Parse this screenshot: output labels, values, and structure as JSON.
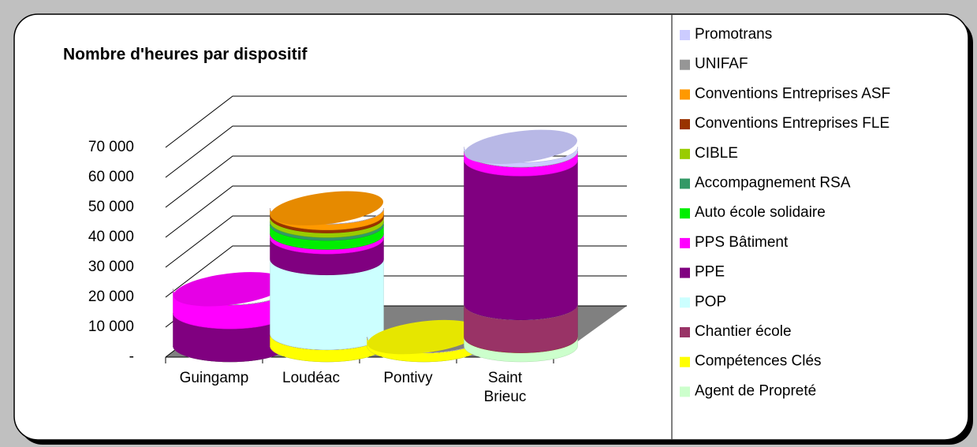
{
  "chart_data": {
    "type": "bar3d",
    "title": "Nombre d'heures par dispositif",
    "categories": [
      "Guingamp",
      "Loudéac",
      "Pontivy",
      "Saint Brieuc"
    ],
    "series": [
      {
        "name": "Promotrans",
        "color": "#ccccff",
        "values": [
          0,
          0,
          0,
          1500
        ]
      },
      {
        "name": "UNIFAF",
        "color": "#969696",
        "values": [
          0,
          0,
          0,
          0
        ]
      },
      {
        "name": "Conventions Entreprises ASF",
        "color": "#ff9900",
        "values": [
          0,
          2000,
          0,
          0
        ]
      },
      {
        "name": "Conventions Entreprises FLE",
        "color": "#993300",
        "values": [
          0,
          1000,
          0,
          0
        ]
      },
      {
        "name": "CIBLE",
        "color": "#99cc00",
        "values": [
          0,
          1500,
          0,
          0
        ]
      },
      {
        "name": "Accompagnement RSA",
        "color": "#339966",
        "values": [
          0,
          1000,
          0,
          0
        ]
      },
      {
        "name": "Auto école solidaire",
        "color": "#00ee00",
        "values": [
          0,
          3000,
          0,
          0
        ]
      },
      {
        "name": "PPS Bâtiment",
        "color": "#ff00ff",
        "values": [
          8000,
          1500,
          0,
          3000
        ]
      },
      {
        "name": "PPE",
        "color": "#800080",
        "values": [
          11000,
          7000,
          0,
          48000
        ]
      },
      {
        "name": "POP",
        "color": "#ccffff",
        "values": [
          0,
          25000,
          0,
          0
        ]
      },
      {
        "name": "Chantier école",
        "color": "#993366",
        "values": [
          0,
          0,
          0,
          11000
        ]
      },
      {
        "name": "Compétences Clés",
        "color": "#ffff00",
        "values": [
          0,
          4000,
          3000,
          0
        ]
      },
      {
        "name": "Agent de Propreté",
        "color": "#ccffcc",
        "values": [
          0,
          0,
          0,
          3000
        ]
      }
    ],
    "ylim": [
      0,
      70000
    ],
    "yticks": [
      {
        "value": 0,
        "label": "-"
      },
      {
        "value": 10000,
        "label": "10 000"
      },
      {
        "value": 20000,
        "label": "20 000"
      },
      {
        "value": 30000,
        "label": "30 000"
      },
      {
        "value": 40000,
        "label": "40 000"
      },
      {
        "value": 50000,
        "label": "50 000"
      },
      {
        "value": 60000,
        "label": "60 000"
      },
      {
        "value": 70000,
        "label": "70 000"
      }
    ],
    "grid": true,
    "legend": "right"
  }
}
